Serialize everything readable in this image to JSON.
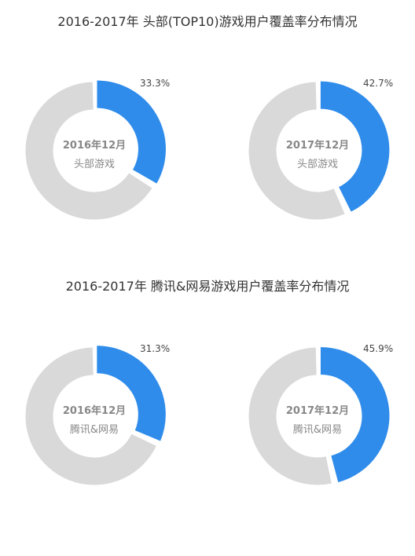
{
  "sections": [
    {
      "title": "2016-2017年 头部(TOP10)游戏用户覆盖率分布情况"
    },
    {
      "title": "2016-2017年 腾讯&网易游戏用户覆盖率分布情况"
    }
  ],
  "colors": {
    "highlight": "#2f8ceb",
    "rest": "#d9d9d9"
  },
  "chart_data": [
    {
      "type": "pie",
      "title": "2016-2017年 头部(TOP10)游戏用户覆盖率分布情况",
      "center_year": "2016年12月",
      "center_label": "头部游戏",
      "value_label": "33.3%",
      "value": 33.3
    },
    {
      "type": "pie",
      "title": "2016-2017年 头部(TOP10)游戏用户覆盖率分布情况",
      "center_year": "2017年12月",
      "center_label": "头部游戏",
      "value_label": "42.7%",
      "value": 42.7
    },
    {
      "type": "pie",
      "title": "2016-2017年 腾讯&网易游戏用户覆盖率分布情况",
      "center_year": "2016年12月",
      "center_label": "腾讯&网易",
      "value_label": "31.3%",
      "value": 31.3
    },
    {
      "type": "pie",
      "title": "2016-2017年 腾讯&网易游戏用户覆盖率分布情况",
      "center_year": "2017年12月",
      "center_label": "腾讯&网易",
      "value_label": "45.9%",
      "value": 45.9
    }
  ]
}
